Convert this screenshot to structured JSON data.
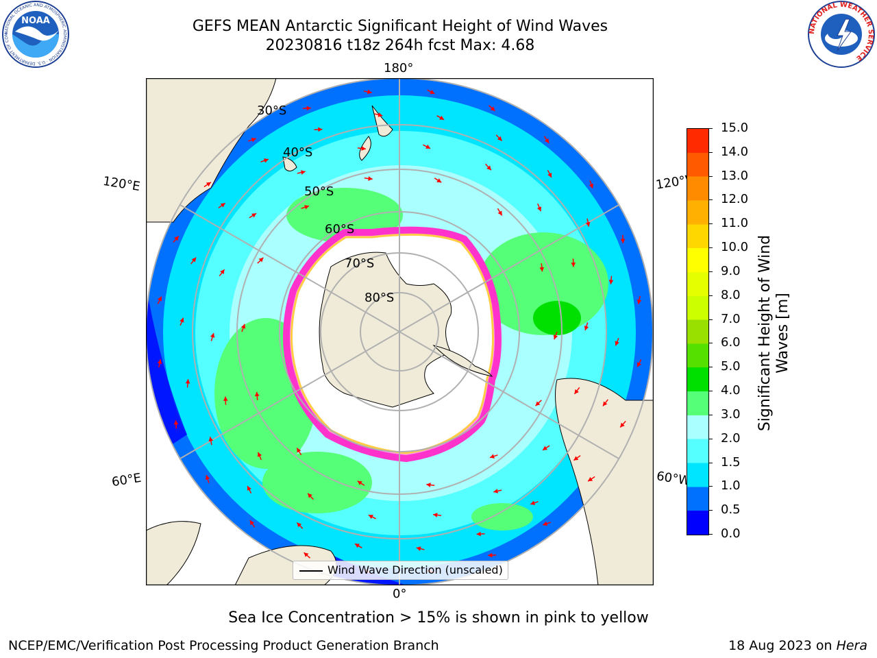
{
  "header": {
    "title": "GEFS MEAN Antarctic Significant Height of Wind Waves",
    "subtitle_line": "20230816 t18z 264h fcst   Max: 4.68"
  },
  "logos": {
    "noaa": {
      "text": "NOAA",
      "ring_text": "NATIONAL OCEANIC AND ATMOSPHERIC ADMINISTRATION · U.S. DEPARTMENT OF COMMERCE"
    },
    "nws": {
      "ring_text": "NATIONAL WEATHER SERVICE"
    }
  },
  "map": {
    "projection": "south polar stereographic",
    "longitude_labels": {
      "top": "180°",
      "upper_left": "120°E",
      "upper_right": "120°W",
      "lower_left": "60°E",
      "lower_right": "60°W",
      "bottom": "0°"
    },
    "latitude_labels": [
      "30°S",
      "40°S",
      "50°S",
      "60°S",
      "70°S",
      "80°S"
    ],
    "legend": "Wind Wave Direction (unscaled)",
    "colors": {
      "land": "#efebd8",
      "ice_edge": "#ff44dd",
      "arrow": "#ff0000",
      "gridline": "#b0b0b0"
    }
  },
  "colorbar": {
    "label_line1": "Significant Height of Wind",
    "label_line2": "Waves [m]",
    "ticks": [
      "15.0",
      "14.0",
      "13.0",
      "12.0",
      "11.0",
      "10.0",
      "9.0",
      "8.0",
      "7.0",
      "6.0",
      "5.0",
      "4.0",
      "3.0",
      "2.0",
      "1.5",
      "1.0",
      "0.5",
      "0.0"
    ],
    "colors_bottom_to_top": [
      "#0000ff",
      "#0070ff",
      "#00e5ff",
      "#55ffff",
      "#aaffff",
      "#55ff77",
      "#00e000",
      "#55e000",
      "#99e000",
      "#ccff00",
      "#e5ff00",
      "#ffff00",
      "#ffd700",
      "#ffb000",
      "#ff8c00",
      "#ff5a00",
      "#ff2a00"
    ]
  },
  "footer": {
    "note": "Sea Ice Concentration > 15% is shown in pink to yellow",
    "left": "NCEP/EMC/Verification Post Processing Product Generation Branch",
    "right_date": "18 Aug 2023 on",
    "right_machine": "Hera"
  }
}
